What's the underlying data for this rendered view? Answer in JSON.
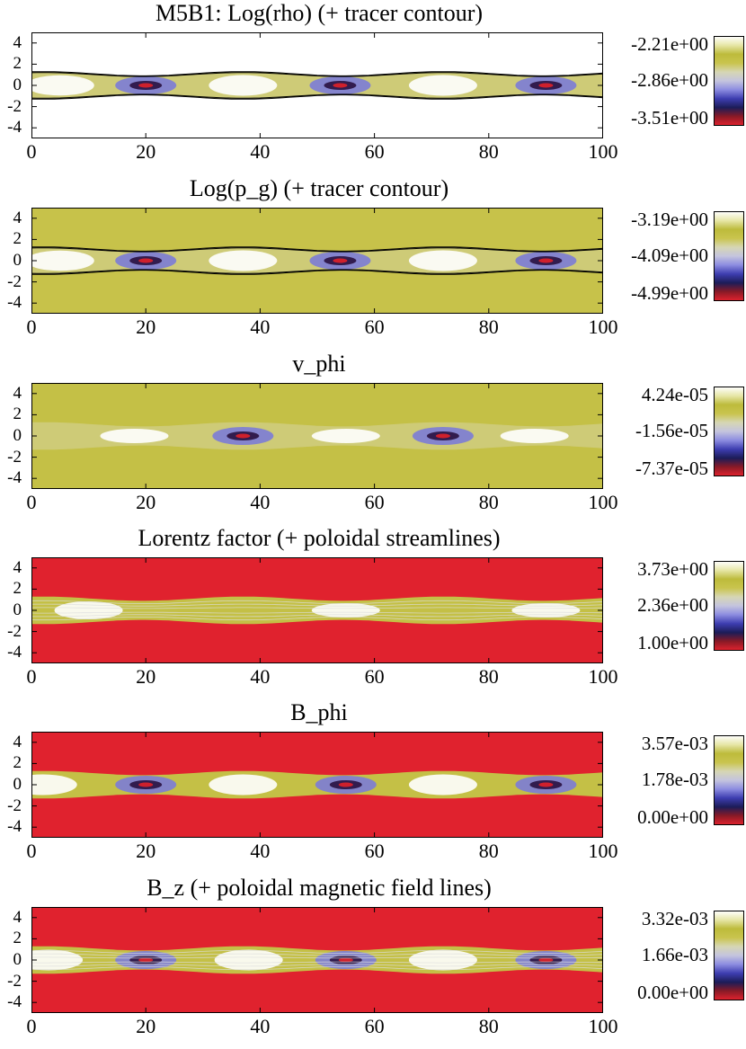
{
  "colors": {
    "colormap": [
      "#e0222e",
      "#8a1a26",
      "#1c1c58",
      "#3d3db0",
      "#8c8ce0",
      "#c4c4de",
      "#d6d6b4",
      "#c9c44e",
      "#bdbb3b",
      "#e6e6a6",
      "#ffffff"
    ],
    "contour": "#000000",
    "streamline": "#dddddd"
  },
  "chart_data": [
    {
      "type": "heatmap",
      "title": "M5B1: Log(rho) (+ tracer contour)",
      "xlabel": "",
      "ylabel": "",
      "xlim": [
        0,
        100
      ],
      "ylim": [
        -5,
        5
      ],
      "x_ticks": [
        0,
        20,
        40,
        60,
        80,
        100
      ],
      "y_ticks": [
        4,
        2,
        0,
        -2,
        -4
      ],
      "colorbar": {
        "max": "-2.21e+00",
        "mid": "-2.86e+00",
        "min": "-3.51e+00"
      },
      "overlay": "tracer contour",
      "background_level": 1.0,
      "knot_centers_x": [
        20,
        54,
        90
      ],
      "bright_regions_x": [
        5,
        37,
        72
      ],
      "jet_half_width": [
        1.3,
        0.9
      ]
    },
    {
      "type": "heatmap",
      "title": "Log(p_g) (+ tracer contour)",
      "xlabel": "",
      "ylabel": "",
      "xlim": [
        0,
        100
      ],
      "ylim": [
        -5,
        5
      ],
      "x_ticks": [
        0,
        20,
        40,
        60,
        80,
        100
      ],
      "y_ticks": [
        4,
        2,
        0,
        -2,
        -4
      ],
      "colorbar": {
        "max": "-3.19e+00",
        "mid": "-4.09e+00",
        "min": "-4.99e+00"
      },
      "overlay": "tracer contour",
      "background_level": 0.72,
      "knot_centers_x": [
        20,
        54,
        90
      ],
      "bright_regions_x": [
        5,
        37,
        72
      ],
      "jet_half_width": [
        1.3,
        0.9
      ]
    },
    {
      "type": "heatmap",
      "title": "v_phi",
      "xlabel": "",
      "ylabel": "",
      "xlim": [
        0,
        100
      ],
      "ylim": [
        -5,
        5
      ],
      "x_ticks": [
        0,
        20,
        40,
        60,
        80,
        100
      ],
      "y_ticks": [
        4,
        2,
        0,
        -2,
        -4
      ],
      "colorbar": {
        "max": "4.24e-05",
        "mid": "-1.56e-05",
        "min": "-7.37e-05"
      },
      "overlay": "none",
      "background_level": 0.74,
      "knot_centers_x": [
        37,
        72
      ],
      "bright_regions_x": [
        18,
        55,
        88
      ],
      "jet_half_width": [
        1.3,
        0.9
      ]
    },
    {
      "type": "heatmap",
      "title": "Lorentz factor (+ poloidal streamlines)",
      "xlabel": "",
      "ylabel": "",
      "xlim": [
        0,
        100
      ],
      "ylim": [
        -5,
        5
      ],
      "x_ticks": [
        0,
        20,
        40,
        60,
        80,
        100
      ],
      "y_ticks": [
        4,
        2,
        0,
        -2,
        -4
      ],
      "colorbar": {
        "max": "3.73e+00",
        "mid": "2.36e+00",
        "min": "1.00e+00"
      },
      "overlay": "poloidal streamlines",
      "background_level": 0.0,
      "knot_centers_x": [],
      "bright_regions_x": [
        10,
        55,
        90
      ],
      "jet_half_width": [
        1.3,
        0.9
      ]
    },
    {
      "type": "heatmap",
      "title": "B_phi",
      "xlabel": "",
      "ylabel": "",
      "xlim": [
        0,
        100
      ],
      "ylim": [
        -5,
        5
      ],
      "x_ticks": [
        0,
        20,
        40,
        60,
        80,
        100
      ],
      "y_ticks": [
        4,
        2,
        0,
        -2,
        -4
      ],
      "colorbar": {
        "max": "3.57e-03",
        "mid": "1.78e-03",
        "min": "0.00e+00"
      },
      "overlay": "none",
      "background_level": 0.0,
      "knot_centers_x": [
        20,
        55,
        90
      ],
      "bright_regions_x": [
        2,
        37,
        72
      ],
      "jet_half_width": [
        1.3,
        0.9
      ]
    },
    {
      "type": "heatmap",
      "title": "B_z (+ poloidal magnetic field lines)",
      "xlabel": "",
      "ylabel": "",
      "xlim": [
        0,
        100
      ],
      "ylim": [
        -5,
        5
      ],
      "x_ticks": [
        0,
        20,
        40,
        60,
        80,
        100
      ],
      "y_ticks": [
        4,
        2,
        0,
        -2,
        -4
      ],
      "colorbar": {
        "max": "3.32e-03",
        "mid": "1.66e-03",
        "min": "0.00e+00"
      },
      "overlay": "poloidal magnetic field lines",
      "background_level": 0.0,
      "knot_centers_x": [
        20,
        55,
        90
      ],
      "bright_regions_x": [
        3,
        38,
        72
      ],
      "jet_half_width": [
        1.3,
        0.9
      ]
    }
  ]
}
